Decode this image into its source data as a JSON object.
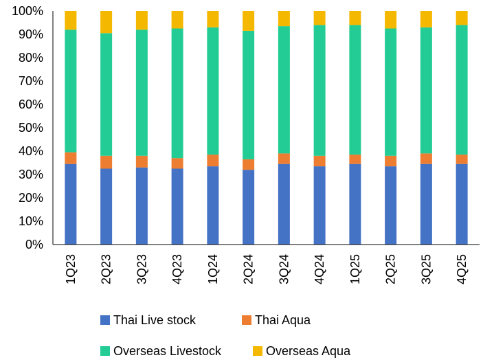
{
  "chart_data": {
    "type": "bar",
    "stacked": true,
    "percent_stacked": true,
    "title": "",
    "xlabel": "",
    "ylabel": "",
    "ylim": [
      0,
      100
    ],
    "y_ticks": [
      "0%",
      "10%",
      "20%",
      "30%",
      "40%",
      "50%",
      "60%",
      "70%",
      "80%",
      "90%",
      "100%"
    ],
    "grid": false,
    "legend_position": "bottom",
    "categories": [
      "1Q23",
      "2Q23",
      "3Q23",
      "4Q23",
      "1Q24",
      "2Q24",
      "3Q24",
      "4Q24",
      "1Q25",
      "2Q25",
      "3Q25",
      "4Q25"
    ],
    "series": [
      {
        "name": "Thai Live stock",
        "color": "#4472C4",
        "values": [
          34.5,
          32.5,
          33,
          32.5,
          33.5,
          32,
          34.5,
          33.5,
          34.5,
          33.5,
          34.5,
          34.5
        ]
      },
      {
        "name": "Thai Aqua",
        "color": "#ED7D31",
        "values": [
          5,
          5.5,
          5,
          4.5,
          5,
          4.5,
          4.5,
          4.5,
          4,
          4.5,
          4.5,
          4
        ]
      },
      {
        "name": "Overseas Livestock",
        "color": "#23CC94",
        "values": [
          52.5,
          52.5,
          54,
          55.5,
          54.5,
          55,
          54.5,
          56,
          55.5,
          54.5,
          54,
          55.5
        ]
      },
      {
        "name": "Overseas Aqua",
        "color": "#F5B800",
        "values": [
          8,
          9.5,
          8,
          7.5,
          7,
          8.5,
          6.5,
          6,
          6,
          7.5,
          7,
          6
        ]
      }
    ],
    "legend_rows": [
      [
        0,
        1
      ],
      [
        2,
        3
      ]
    ]
  }
}
